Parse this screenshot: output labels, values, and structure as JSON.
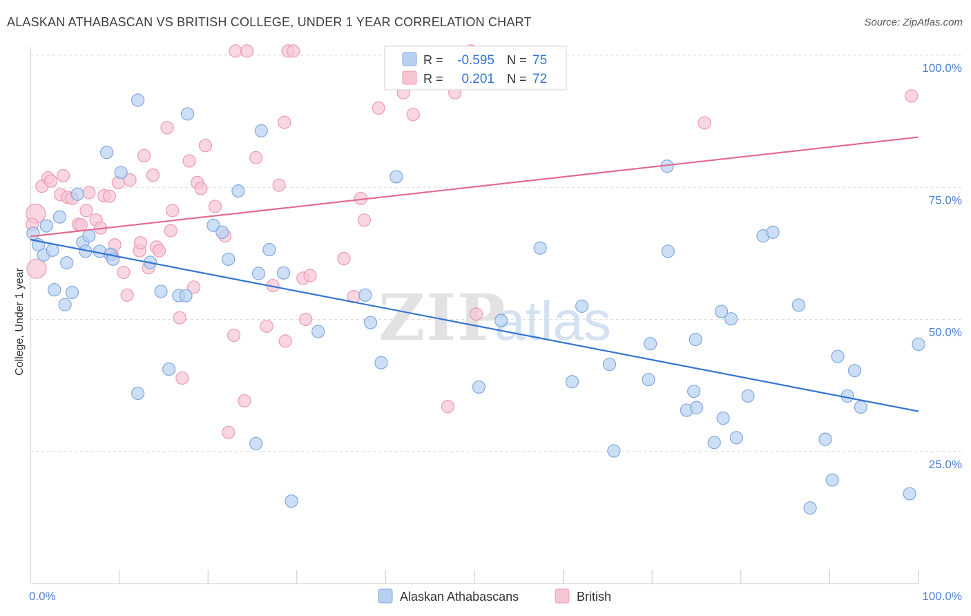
{
  "header": {
    "title": "ALASKAN ATHABASCAN VS BRITISH COLLEGE, UNDER 1 YEAR CORRELATION CHART",
    "source": "Source: ZipAtlas.com"
  },
  "watermark": {
    "zip": "ZIP",
    "atlas": "atlas"
  },
  "colors": {
    "blue_fill": "#b8d1f3",
    "blue_stroke": "#7fa8de",
    "blue_line": "#3374d4",
    "pink_fill": "#f8c5d3",
    "pink_stroke": "#ec9ab2",
    "pink_line": "#e46a92",
    "tick_label": "#4a7fd0",
    "grid": "#dcdcdc"
  },
  "stats_legend": {
    "rows": [
      {
        "r_label": "R =",
        "r_value": "-0.595",
        "n_label": "N =",
        "n_value": "75",
        "series": "Alaskan Athabascans"
      },
      {
        "r_label": "R =",
        "r_value": "0.201",
        "n_label": "N =",
        "n_value": "72",
        "series": "British"
      }
    ]
  },
  "chart_data": {
    "type": "scatter",
    "title": "ALASKAN ATHABASCAN VS BRITISH COLLEGE, UNDER 1 YEAR CORRELATION CHART",
    "xlabel": "",
    "ylabel": "College, Under 1 year",
    "xlim": [
      0,
      100
    ],
    "ylim": [
      0,
      100
    ],
    "x_tick_labels": [
      "0.0%",
      "100.0%"
    ],
    "y_ticks": [
      25,
      50,
      75,
      100
    ],
    "y_tick_labels": [
      "25.0%",
      "50.0%",
      "75.0%",
      "100.0%"
    ],
    "grid": true,
    "legend_position": "bottom-center",
    "series": [
      {
        "name": "Alaskan Athabascans",
        "color": "#b8d1f3",
        "trendline": {
          "x": [
            0,
            100
          ],
          "y": [
            65.1,
            32.6
          ]
        },
        "points": [
          {
            "x": 0.3,
            "y": 66.3
          },
          {
            "x": 0.9,
            "y": 64.1
          },
          {
            "x": 1.5,
            "y": 62.2
          },
          {
            "x": 1.8,
            "y": 67.7
          },
          {
            "x": 2.5,
            "y": 63.1
          },
          {
            "x": 2.7,
            "y": 55.6
          },
          {
            "x": 3.3,
            "y": 69.4
          },
          {
            "x": 3.9,
            "y": 52.8
          },
          {
            "x": 4.1,
            "y": 60.7
          },
          {
            "x": 4.7,
            "y": 55.1
          },
          {
            "x": 5.3,
            "y": 73.7
          },
          {
            "x": 5.9,
            "y": 64.6
          },
          {
            "x": 6.2,
            "y": 62.9
          },
          {
            "x": 6.6,
            "y": 65.8
          },
          {
            "x": 7.8,
            "y": 62.9
          },
          {
            "x": 8.6,
            "y": 81.6
          },
          {
            "x": 9.0,
            "y": 62.3
          },
          {
            "x": 9.3,
            "y": 61.4
          },
          {
            "x": 10.2,
            "y": 77.8
          },
          {
            "x": 12.1,
            "y": 91.5
          },
          {
            "x": 12.1,
            "y": 36.0
          },
          {
            "x": 13.5,
            "y": 60.8
          },
          {
            "x": 14.7,
            "y": 55.3
          },
          {
            "x": 15.6,
            "y": 40.6
          },
          {
            "x": 16.7,
            "y": 54.5
          },
          {
            "x": 17.5,
            "y": 54.5
          },
          {
            "x": 17.7,
            "y": 88.9
          },
          {
            "x": 20.6,
            "y": 67.8
          },
          {
            "x": 21.6,
            "y": 66.5
          },
          {
            "x": 22.3,
            "y": 61.4
          },
          {
            "x": 23.4,
            "y": 74.3
          },
          {
            "x": 25.4,
            "y": 26.5
          },
          {
            "x": 25.7,
            "y": 58.7
          },
          {
            "x": 26.0,
            "y": 85.7
          },
          {
            "x": 26.9,
            "y": 63.2
          },
          {
            "x": 28.5,
            "y": 58.8
          },
          {
            "x": 29.4,
            "y": 15.6
          },
          {
            "x": 32.4,
            "y": 47.7
          },
          {
            "x": 37.7,
            "y": 54.6
          },
          {
            "x": 38.3,
            "y": 49.4
          },
          {
            "x": 39.5,
            "y": 41.8
          },
          {
            "x": 41.2,
            "y": 77.0
          },
          {
            "x": 50.5,
            "y": 37.2
          },
          {
            "x": 53.0,
            "y": 49.8
          },
          {
            "x": 57.4,
            "y": 63.5
          },
          {
            "x": 61.0,
            "y": 38.2
          },
          {
            "x": 62.1,
            "y": 52.5
          },
          {
            "x": 65.2,
            "y": 41.5
          },
          {
            "x": 65.7,
            "y": 25.1
          },
          {
            "x": 69.6,
            "y": 38.6
          },
          {
            "x": 69.8,
            "y": 45.4
          },
          {
            "x": 71.7,
            "y": 79.0
          },
          {
            "x": 71.8,
            "y": 62.9
          },
          {
            "x": 73.9,
            "y": 32.8
          },
          {
            "x": 74.7,
            "y": 36.4
          },
          {
            "x": 75.0,
            "y": 33.3
          },
          {
            "x": 74.9,
            "y": 46.2
          },
          {
            "x": 77.0,
            "y": 26.7
          },
          {
            "x": 77.8,
            "y": 51.5
          },
          {
            "x": 78.0,
            "y": 31.3
          },
          {
            "x": 78.9,
            "y": 50.1
          },
          {
            "x": 79.5,
            "y": 27.6
          },
          {
            "x": 80.8,
            "y": 35.5
          },
          {
            "x": 82.5,
            "y": 65.8
          },
          {
            "x": 83.6,
            "y": 66.5
          },
          {
            "x": 86.5,
            "y": 52.7
          },
          {
            "x": 87.8,
            "y": 14.3
          },
          {
            "x": 89.5,
            "y": 27.3
          },
          {
            "x": 90.3,
            "y": 19.6
          },
          {
            "x": 90.9,
            "y": 43.0
          },
          {
            "x": 92.0,
            "y": 35.5
          },
          {
            "x": 92.8,
            "y": 40.3
          },
          {
            "x": 93.5,
            "y": 33.4
          },
          {
            "x": 99.0,
            "y": 17.0
          },
          {
            "x": 100.0,
            "y": 45.3
          }
        ]
      },
      {
        "name": "British",
        "color": "#f8c5d3",
        "trendline": {
          "x": [
            0,
            100
          ],
          "y": [
            65.7,
            84.5
          ]
        },
        "points": [
          {
            "x": 0.6,
            "y": 70.0
          },
          {
            "x": 0.7,
            "y": 59.6
          },
          {
            "x": 1.3,
            "y": 75.2
          },
          {
            "x": 2.0,
            "y": 76.8
          },
          {
            "x": 2.3,
            "y": 76.2
          },
          {
            "x": 3.4,
            "y": 73.6
          },
          {
            "x": 3.7,
            "y": 77.2
          },
          {
            "x": 4.2,
            "y": 73.1
          },
          {
            "x": 4.7,
            "y": 72.9
          },
          {
            "x": 5.4,
            "y": 68.0
          },
          {
            "x": 5.7,
            "y": 67.9
          },
          {
            "x": 6.3,
            "y": 70.6
          },
          {
            "x": 6.6,
            "y": 74.0
          },
          {
            "x": 7.4,
            "y": 68.8
          },
          {
            "x": 7.9,
            "y": 67.3
          },
          {
            "x": 8.3,
            "y": 73.4
          },
          {
            "x": 8.9,
            "y": 73.3
          },
          {
            "x": 9.2,
            "y": 62.3
          },
          {
            "x": 9.5,
            "y": 64.1
          },
          {
            "x": 9.9,
            "y": 75.9
          },
          {
            "x": 10.5,
            "y": 58.9
          },
          {
            "x": 10.9,
            "y": 54.6
          },
          {
            "x": 11.2,
            "y": 76.4
          },
          {
            "x": 12.3,
            "y": 63.0
          },
          {
            "x": 12.4,
            "y": 64.5
          },
          {
            "x": 12.8,
            "y": 81.0
          },
          {
            "x": 13.3,
            "y": 59.8
          },
          {
            "x": 13.8,
            "y": 77.3
          },
          {
            "x": 14.2,
            "y": 63.7
          },
          {
            "x": 14.5,
            "y": 63.0
          },
          {
            "x": 15.4,
            "y": 86.3
          },
          {
            "x": 15.8,
            "y": 66.8
          },
          {
            "x": 16.0,
            "y": 70.6
          },
          {
            "x": 16.8,
            "y": 50.3
          },
          {
            "x": 17.1,
            "y": 38.9
          },
          {
            "x": 17.9,
            "y": 80.0
          },
          {
            "x": 18.4,
            "y": 56.1
          },
          {
            "x": 18.8,
            "y": 75.9
          },
          {
            "x": 19.2,
            "y": 74.8
          },
          {
            "x": 19.7,
            "y": 82.9
          },
          {
            "x": 20.8,
            "y": 71.4
          },
          {
            "x": 21.9,
            "y": 65.8
          },
          {
            "x": 22.3,
            "y": 28.6
          },
          {
            "x": 22.9,
            "y": 47.0
          },
          {
            "x": 23.1,
            "y": 100.8
          },
          {
            "x": 24.1,
            "y": 34.6
          },
          {
            "x": 24.4,
            "y": 100.8
          },
          {
            "x": 25.4,
            "y": 80.6
          },
          {
            "x": 26.6,
            "y": 48.7
          },
          {
            "x": 27.3,
            "y": 56.4
          },
          {
            "x": 28.0,
            "y": 75.4
          },
          {
            "x": 28.6,
            "y": 87.3
          },
          {
            "x": 28.7,
            "y": 45.9
          },
          {
            "x": 29.0,
            "y": 100.8
          },
          {
            "x": 29.6,
            "y": 100.8
          },
          {
            "x": 30.7,
            "y": 57.8
          },
          {
            "x": 31.0,
            "y": 50.0
          },
          {
            "x": 31.5,
            "y": 58.3
          },
          {
            "x": 35.3,
            "y": 61.5
          },
          {
            "x": 36.4,
            "y": 54.3
          },
          {
            "x": 37.2,
            "y": 72.9
          },
          {
            "x": 37.6,
            "y": 68.8
          },
          {
            "x": 39.2,
            "y": 90.0
          },
          {
            "x": 42.0,
            "y": 92.9
          },
          {
            "x": 43.1,
            "y": 88.8
          },
          {
            "x": 47.0,
            "y": 33.5
          },
          {
            "x": 47.8,
            "y": 92.9
          },
          {
            "x": 49.6,
            "y": 100.8
          },
          {
            "x": 50.2,
            "y": 51.0
          },
          {
            "x": 75.9,
            "y": 87.2
          },
          {
            "x": 99.2,
            "y": 92.3
          },
          {
            "x": 0.2,
            "y": 68.0
          }
        ]
      }
    ]
  },
  "bottom_legend": {
    "items": [
      {
        "label": "Alaskan Athabascans"
      },
      {
        "label": "British"
      }
    ]
  }
}
